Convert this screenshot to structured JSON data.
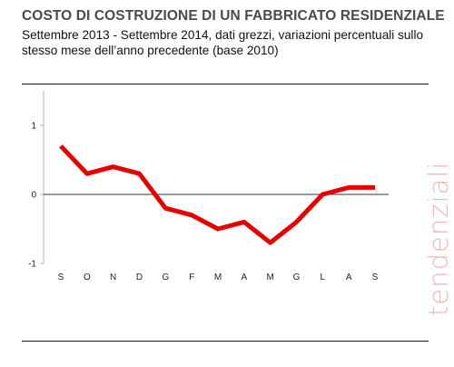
{
  "header": {
    "title": "COSTO DI COSTRUZIONE DI UN FABBRICATO RESIDENZIALE",
    "subtitle": "Settembre 2013 - Settembre 2014, dati grezzi, variazioni percentuali sullo stesso mese dell’anno precedente (base 2010)"
  },
  "watermark": {
    "text": "tendenziali",
    "color": "#f0b8b8"
  },
  "chart_data": {
    "type": "line",
    "title": "COSTO DI COSTRUZIONE DI UN FABBRICATO RESIDENZIALE",
    "subtitle": "Settembre 2013 - Settembre 2014, dati grezzi, variazioni percentuali sullo stesso mese dell’anno precedente (base 2010)",
    "categories": [
      "S",
      "O",
      "N",
      "D",
      "G",
      "F",
      "M",
      "A",
      "M",
      "G",
      "L",
      "A",
      "S"
    ],
    "series": [
      {
        "values": [
          0.7,
          0.3,
          0.4,
          0.3,
          -0.2,
          -0.3,
          -0.5,
          -0.4,
          -0.7,
          -0.4,
          0.0,
          0.1,
          0.1
        ],
        "color": "#e60000"
      }
    ],
    "y_ticks": [
      -1,
      0,
      1
    ],
    "ylim": [
      -1,
      1.5
    ],
    "xlabel": "",
    "ylabel": "",
    "grid": false,
    "legend": "none"
  }
}
